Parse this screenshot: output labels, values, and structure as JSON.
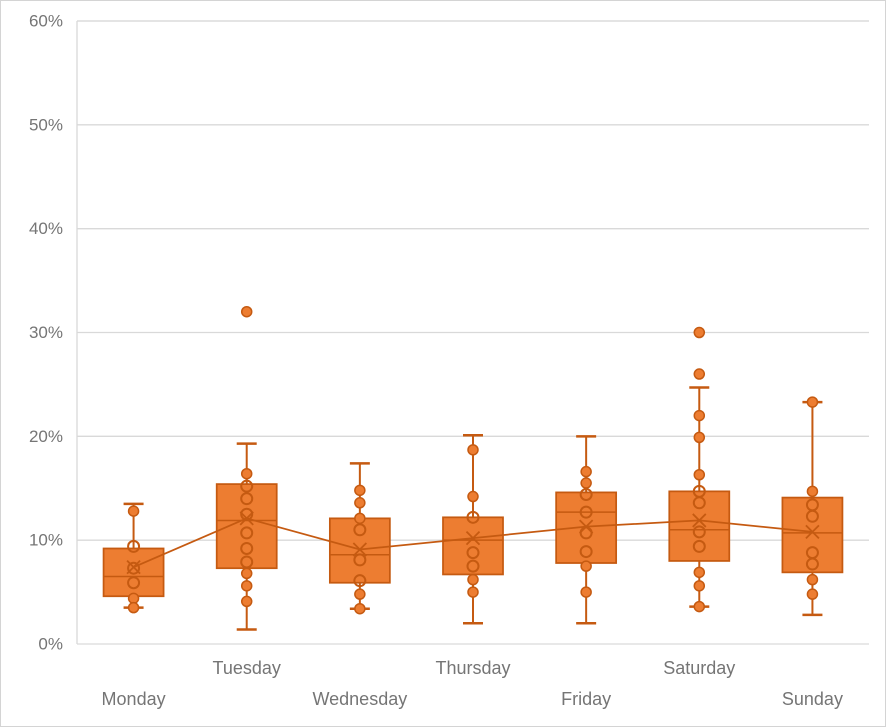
{
  "chart_data": {
    "type": "box",
    "title": "",
    "xlabel": "",
    "ylabel": "",
    "ylim": [
      0,
      60
    ],
    "grid": true,
    "legend": "none",
    "yticks": [
      0,
      10,
      20,
      30,
      40,
      50,
      60
    ],
    "ytick_labels": [
      "0%",
      "10%",
      "20%",
      "30%",
      "40%",
      "50%",
      "60%"
    ],
    "categories": [
      "Monday",
      "Tuesday",
      "Wednesday",
      "Thursday",
      "Friday",
      "Saturday",
      "Sunday"
    ],
    "x_label_rows": [
      "lower",
      "upper",
      "lower",
      "upper",
      "lower",
      "upper",
      "lower"
    ],
    "colors": {
      "box_fill": "#ED7D31",
      "box_stroke": "#C55A11",
      "mean_line": "#C55A11",
      "gridline": "#D9D9D9",
      "plot_border": "#D9D9D9",
      "axis_text": "#757575",
      "background": "#FFFFFF"
    },
    "boxes": [
      {
        "category": "Monday",
        "whisker_low": 3.5,
        "q1": 4.6,
        "median": 6.5,
        "mean": 7.4,
        "q3": 9.2,
        "whisker_high": 13.5,
        "outliers": [],
        "points_filled": [
          12.8,
          4.4,
          3.5
        ],
        "points_open": [
          9.4,
          7.3,
          5.9
        ]
      },
      {
        "category": "Tuesday",
        "whisker_low": 1.4,
        "q1": 7.3,
        "median": 11.9,
        "mean": 12.1,
        "q3": 15.4,
        "whisker_high": 19.3,
        "outliers": [
          32.0
        ],
        "points_filled": [
          16.4,
          6.8,
          5.6,
          4.1
        ],
        "points_open": [
          15.2,
          14.0,
          12.5,
          10.7,
          9.2,
          7.9
        ]
      },
      {
        "category": "Wednesday",
        "whisker_low": 3.4,
        "q1": 5.9,
        "median": 8.6,
        "mean": 9.1,
        "q3": 12.1,
        "whisker_high": 17.4,
        "outliers": [],
        "points_filled": [
          14.8,
          13.6,
          12.1,
          4.8,
          3.4
        ],
        "points_open": [
          11.0,
          8.1,
          6.1
        ]
      },
      {
        "category": "Thursday",
        "whisker_low": 2.0,
        "q1": 6.7,
        "median": 10.0,
        "mean": 10.2,
        "q3": 12.2,
        "whisker_high": 20.1,
        "outliers": [],
        "points_filled": [
          18.7,
          14.2,
          6.2,
          5.0
        ],
        "points_open": [
          12.2,
          8.8,
          7.5
        ]
      },
      {
        "category": "Friday",
        "whisker_low": 2.0,
        "q1": 7.8,
        "median": 12.7,
        "mean": 11.3,
        "q3": 14.6,
        "whisker_high": 20.0,
        "outliers": [],
        "points_filled": [
          16.6,
          15.5,
          7.5,
          5.0
        ],
        "points_open": [
          14.4,
          12.7,
          10.7,
          8.9
        ]
      },
      {
        "category": "Saturday",
        "whisker_low": 3.6,
        "q1": 8.0,
        "median": 11.0,
        "mean": 11.9,
        "q3": 14.7,
        "whisker_high": 24.7,
        "outliers": [
          30.0,
          26.0
        ],
        "points_filled": [
          22.0,
          19.9,
          16.3,
          6.9,
          5.6,
          3.6
        ],
        "points_open": [
          14.7,
          13.6,
          10.8,
          9.4
        ]
      },
      {
        "category": "Sunday",
        "whisker_low": 2.8,
        "q1": 6.9,
        "median": 10.7,
        "mean": 10.8,
        "q3": 14.1,
        "whisker_high": 23.3,
        "outliers": [],
        "points_filled": [
          23.3,
          14.7,
          6.2,
          4.8
        ],
        "points_open": [
          13.4,
          12.3,
          8.8,
          7.7
        ]
      }
    ],
    "mean_line": {
      "show": true,
      "values": [
        7.4,
        12.1,
        9.1,
        10.2,
        11.3,
        11.9,
        10.8
      ]
    }
  }
}
